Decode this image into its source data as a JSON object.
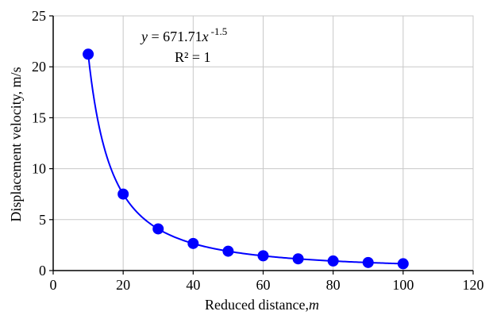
{
  "chart_data": {
    "type": "scatter",
    "x": [
      10,
      20,
      30,
      40,
      50,
      60,
      70,
      80,
      90,
      100
    ],
    "series": [
      {
        "values": [
          21.24,
          7.51,
          4.09,
          2.66,
          1.9,
          1.45,
          1.15,
          0.94,
          0.79,
          0.67
        ],
        "color": "#0000ff",
        "marker": "circle"
      }
    ],
    "trendline": {
      "type": "power",
      "coefficient": 671.71,
      "exponent": -1.5,
      "color": "#0000ff",
      "equation_prefix": "y = 671.71x",
      "equation_exponent": "-1.5",
      "r_squared_label": "R² = 1"
    },
    "xlabel": "Reduced distance,",
    "xlabel_italic": "m",
    "ylabel": "Displacement velocity, m/s",
    "xlim": [
      0,
      120
    ],
    "ylim": [
      0,
      25
    ],
    "xticks": [
      0,
      20,
      40,
      60,
      80,
      100,
      120
    ],
    "yticks": [
      0,
      5,
      10,
      15,
      20,
      25
    ],
    "grid": true
  }
}
